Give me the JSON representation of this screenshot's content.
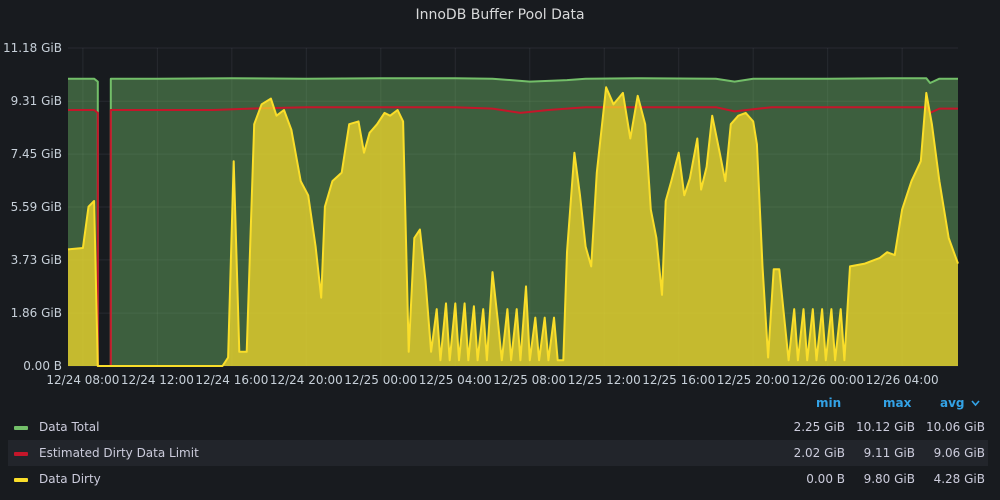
{
  "chart_data": {
    "type": "area",
    "title": "InnoDB Buffer Pool Data",
    "y_unit": "GiB",
    "ylim": [
      0,
      11.18
    ],
    "y_ticks": [
      "0.00 B",
      "1.86 GiB",
      "3.73 GiB",
      "5.59 GiB",
      "7.45 GiB",
      "9.31 GiB",
      "11.18 GiB"
    ],
    "y_tick_values": [
      0,
      1.86,
      3.73,
      5.59,
      7.45,
      9.31,
      11.18
    ],
    "x_ticks": [
      "12/24 08:00",
      "12/24 12:00",
      "12/24 16:00",
      "12/24 20:00",
      "12/25 00:00",
      "12/25 04:00",
      "12/25 08:00",
      "12/25 12:00",
      "12/25 16:00",
      "12/25 20:00",
      "12/26 00:00",
      "12/26 04:00"
    ],
    "x_tick_hours": [
      8,
      12,
      16,
      20,
      24,
      28,
      32,
      36,
      40,
      44,
      48,
      52
    ],
    "xlim_hours": [
      7.2,
      55
    ],
    "grid": true,
    "legend_placement": "bottom",
    "series": [
      {
        "name": "Data Total",
        "color": "#73bf69",
        "points": [
          [
            7.2,
            10.1
          ],
          [
            8.6,
            10.1
          ],
          [
            8.8,
            10.0
          ],
          [
            8.8,
            0
          ],
          [
            9.5,
            0
          ],
          [
            9.5,
            10.1
          ],
          [
            12,
            10.1
          ],
          [
            16,
            10.12
          ],
          [
            20,
            10.1
          ],
          [
            24,
            10.12
          ],
          [
            28,
            10.12
          ],
          [
            30,
            10.1
          ],
          [
            32,
            10.0
          ],
          [
            34,
            10.05
          ],
          [
            35,
            10.1
          ],
          [
            38,
            10.12
          ],
          [
            42,
            10.1
          ],
          [
            43,
            10.0
          ],
          [
            44,
            10.1
          ],
          [
            48,
            10.1
          ],
          [
            52,
            10.12
          ],
          [
            53.3,
            10.12
          ],
          [
            53.5,
            9.95
          ],
          [
            54,
            10.1
          ],
          [
            55,
            10.1
          ]
        ]
      },
      {
        "name": "Estimated Dirty Data Limit",
        "color": "#c4162a",
        "points": [
          [
            7.2,
            9.0
          ],
          [
            8.6,
            9.0
          ],
          [
            8.8,
            8.9
          ],
          [
            8.8,
            0
          ],
          [
            9.5,
            0
          ],
          [
            9.5,
            9.0
          ],
          [
            15,
            9.0
          ],
          [
            17,
            9.05
          ],
          [
            20,
            9.1
          ],
          [
            24,
            9.1
          ],
          [
            28,
            9.1
          ],
          [
            30,
            9.05
          ],
          [
            31.5,
            8.9
          ],
          [
            33,
            9.0
          ],
          [
            35,
            9.1
          ],
          [
            38,
            9.1
          ],
          [
            42,
            9.1
          ],
          [
            43,
            8.95
          ],
          [
            45,
            9.1
          ],
          [
            48,
            9.1
          ],
          [
            52,
            9.1
          ],
          [
            53.3,
            9.1
          ],
          [
            53.5,
            8.9
          ],
          [
            54,
            9.05
          ],
          [
            55,
            9.05
          ]
        ]
      },
      {
        "name": "Data Dirty",
        "color": "#fade2a",
        "points": [
          [
            7.2,
            4.1
          ],
          [
            8.0,
            4.15
          ],
          [
            8.3,
            5.6
          ],
          [
            8.6,
            5.8
          ],
          [
            8.8,
            0
          ],
          [
            9.5,
            0
          ],
          [
            15.5,
            0
          ],
          [
            15.8,
            0.3
          ],
          [
            16.1,
            7.2
          ],
          [
            16.4,
            0.5
          ],
          [
            16.8,
            0.5
          ],
          [
            17.2,
            8.5
          ],
          [
            17.6,
            9.2
          ],
          [
            18.1,
            9.4
          ],
          [
            18.4,
            8.8
          ],
          [
            18.8,
            9.0
          ],
          [
            19.2,
            8.3
          ],
          [
            19.7,
            6.5
          ],
          [
            20.1,
            6.0
          ],
          [
            20.5,
            4.2
          ],
          [
            20.8,
            2.4
          ],
          [
            21.0,
            5.6
          ],
          [
            21.4,
            6.5
          ],
          [
            21.9,
            6.8
          ],
          [
            22.3,
            8.5
          ],
          [
            22.8,
            8.6
          ],
          [
            23.1,
            7.5
          ],
          [
            23.4,
            8.2
          ],
          [
            23.8,
            8.5
          ],
          [
            24.2,
            8.9
          ],
          [
            24.5,
            8.8
          ],
          [
            24.9,
            9.0
          ],
          [
            25.2,
            8.6
          ],
          [
            25.5,
            0.5
          ],
          [
            25.8,
            4.5
          ],
          [
            26.1,
            4.8
          ],
          [
            26.4,
            3.0
          ],
          [
            26.7,
            0.5
          ],
          [
            27.0,
            2.0
          ],
          [
            27.2,
            0.2
          ],
          [
            27.5,
            2.2
          ],
          [
            27.7,
            0.2
          ],
          [
            28.0,
            2.2
          ],
          [
            28.2,
            0.2
          ],
          [
            28.5,
            2.2
          ],
          [
            28.7,
            0.2
          ],
          [
            29.0,
            2.1
          ],
          [
            29.2,
            0.2
          ],
          [
            29.5,
            2.0
          ],
          [
            29.7,
            0.2
          ],
          [
            30.0,
            3.3
          ],
          [
            30.3,
            1.5
          ],
          [
            30.5,
            0.2
          ],
          [
            30.8,
            2.0
          ],
          [
            31.0,
            0.2
          ],
          [
            31.3,
            2.0
          ],
          [
            31.5,
            0.2
          ],
          [
            31.8,
            2.8
          ],
          [
            32.0,
            0.2
          ],
          [
            32.3,
            1.7
          ],
          [
            32.5,
            0.2
          ],
          [
            32.8,
            1.7
          ],
          [
            33.0,
            0.2
          ],
          [
            33.3,
            1.7
          ],
          [
            33.5,
            0.2
          ],
          [
            33.8,
            0.2
          ],
          [
            34.0,
            4.0
          ],
          [
            34.4,
            7.5
          ],
          [
            34.7,
            6.0
          ],
          [
            35.0,
            4.2
          ],
          [
            35.3,
            3.5
          ],
          [
            35.6,
            6.8
          ],
          [
            36.1,
            9.8
          ],
          [
            36.5,
            9.2
          ],
          [
            37.0,
            9.6
          ],
          [
            37.4,
            8.0
          ],
          [
            37.8,
            9.5
          ],
          [
            38.2,
            8.5
          ],
          [
            38.5,
            5.5
          ],
          [
            38.8,
            4.5
          ],
          [
            39.1,
            2.5
          ],
          [
            39.3,
            5.8
          ],
          [
            39.6,
            6.5
          ],
          [
            40.0,
            7.5
          ],
          [
            40.3,
            6.0
          ],
          [
            40.6,
            6.6
          ],
          [
            41.0,
            8.0
          ],
          [
            41.2,
            6.2
          ],
          [
            41.5,
            7.0
          ],
          [
            41.8,
            8.8
          ],
          [
            42.2,
            7.5
          ],
          [
            42.5,
            6.5
          ],
          [
            42.8,
            8.5
          ],
          [
            43.2,
            8.8
          ],
          [
            43.6,
            8.9
          ],
          [
            44.0,
            8.6
          ],
          [
            44.2,
            7.8
          ],
          [
            44.5,
            3.5
          ],
          [
            44.8,
            0.3
          ],
          [
            45.1,
            3.4
          ],
          [
            45.4,
            3.4
          ],
          [
            45.7,
            1.5
          ],
          [
            45.9,
            0.2
          ],
          [
            46.2,
            2.0
          ],
          [
            46.4,
            0.2
          ],
          [
            46.7,
            2.0
          ],
          [
            46.9,
            0.2
          ],
          [
            47.2,
            2.0
          ],
          [
            47.4,
            0.2
          ],
          [
            47.7,
            2.0
          ],
          [
            47.9,
            0.2
          ],
          [
            48.2,
            2.0
          ],
          [
            48.4,
            0.2
          ],
          [
            48.7,
            2.0
          ],
          [
            48.9,
            0.2
          ],
          [
            49.2,
            3.5
          ],
          [
            50.0,
            3.6
          ],
          [
            50.8,
            3.8
          ],
          [
            51.2,
            4.0
          ],
          [
            51.6,
            3.9
          ],
          [
            52.0,
            5.5
          ],
          [
            52.5,
            6.5
          ],
          [
            53.0,
            7.2
          ],
          [
            53.3,
            9.6
          ],
          [
            53.6,
            8.5
          ],
          [
            54.0,
            6.5
          ],
          [
            54.5,
            4.5
          ],
          [
            55.0,
            3.6
          ]
        ]
      }
    ]
  },
  "legend": {
    "headers": {
      "min": "min",
      "max": "max",
      "avg": "avg"
    },
    "sort_indicator": "chevron-down-icon",
    "rows": [
      {
        "name": "Data Total",
        "color": "#73bf69",
        "min": "2.25 GiB",
        "max": "10.12 GiB",
        "avg": "10.06 GiB"
      },
      {
        "name": "Estimated Dirty Data Limit",
        "color": "#c4162a",
        "min": "2.02 GiB",
        "max": "9.11 GiB",
        "avg": "9.06 GiB"
      },
      {
        "name": "Data Dirty",
        "color": "#fade2a",
        "min": "0.00 B",
        "max": "9.80 GiB",
        "avg": "4.28 GiB"
      }
    ]
  }
}
